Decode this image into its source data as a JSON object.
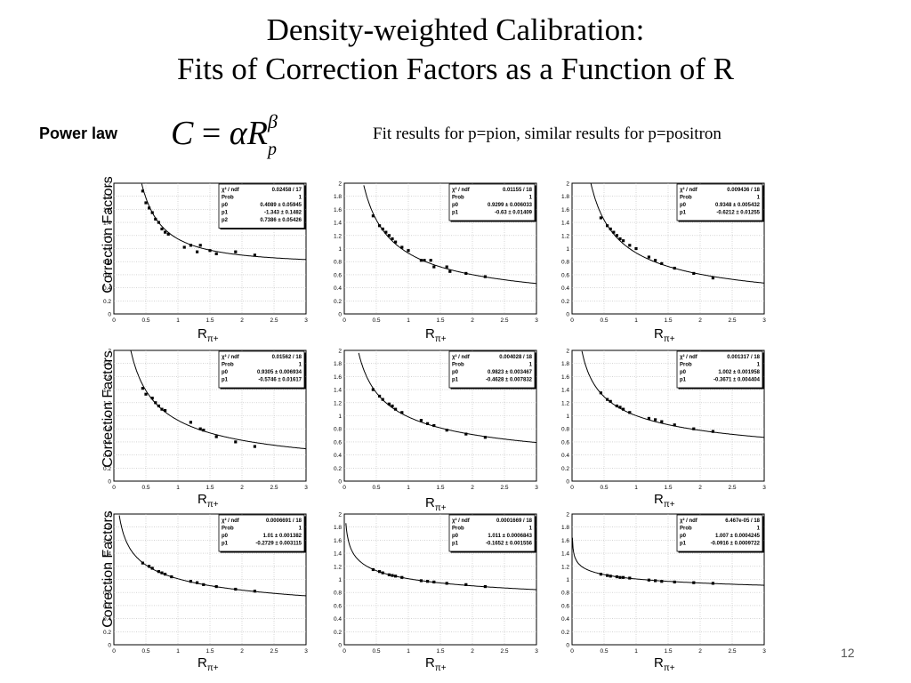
{
  "slide": {
    "title_line1": "Density-weighted Calibration:",
    "title_line2": "Fits of Correction Factors as a Function of R",
    "power_law_label": "Power law",
    "formula": {
      "lhs": "C",
      "eq": "=",
      "alpha": "α",
      "r": "R",
      "sub": "p",
      "sup": "β"
    },
    "fit_note": "Fit results for p=pion, similar results for p=positron",
    "y_axis_label": "Correction Factors",
    "x_axis_label_base": "R",
    "x_axis_label_sub": "π+",
    "page_number": "12"
  },
  "chart_data": [
    {
      "type": "scatter",
      "xlim": [
        0,
        3
      ],
      "ylim": [
        0,
        2
      ],
      "x_ticks": [
        "0",
        "0.5",
        "1",
        "1.5",
        "2",
        "2.5",
        "3"
      ],
      "y_ticks": [
        "0",
        "0.2",
        "0.4",
        "0.6",
        "0.8",
        "1",
        "1.2",
        "1.4",
        "1.6",
        "1.8",
        "2"
      ],
      "fit": {
        "alpha": 0.4089,
        "beta": -1.343,
        "offset": 0.7386
      },
      "stats": [
        [
          "χ² / ndf",
          "0.02458 / 17"
        ],
        [
          "Prob",
          "1"
        ],
        [
          "p0",
          "0.4089 ± 0.05945"
        ],
        [
          "p1",
          "-1.343 ± 0.1482"
        ],
        [
          "p2",
          "0.7386 ± 0.05426"
        ]
      ],
      "x": [
        0.45,
        0.5,
        0.55,
        0.6,
        0.65,
        0.7,
        0.75,
        0.8,
        0.85,
        1.1,
        1.2,
        1.3,
        1.35,
        1.5,
        1.6,
        1.9,
        2.2
      ],
      "y": [
        1.88,
        1.7,
        1.62,
        1.55,
        1.45,
        1.4,
        1.3,
        1.25,
        1.22,
        1.02,
        1.05,
        0.95,
        1.05,
        0.97,
        0.92,
        0.95,
        0.9
      ]
    },
    {
      "type": "scatter",
      "xlim": [
        0,
        3
      ],
      "ylim": [
        0,
        2
      ],
      "x_ticks": [
        "0",
        "0.5",
        "1",
        "1.5",
        "2",
        "2.5",
        "3"
      ],
      "y_ticks": [
        "0",
        "0.2",
        "0.4",
        "0.6",
        "0.8",
        "1",
        "1.2",
        "1.4",
        "1.6",
        "1.8",
        "2"
      ],
      "fit": {
        "alpha": 0.9299,
        "beta": -0.63,
        "offset": 0
      },
      "stats": [
        [
          "χ² / ndf",
          "0.01155 / 18"
        ],
        [
          "Prob",
          "1"
        ],
        [
          "p0",
          "0.9299 ± 0.006033"
        ],
        [
          "p1",
          "-0.63 ± 0.01409"
        ]
      ],
      "x": [
        0.45,
        0.55,
        0.6,
        0.65,
        0.7,
        0.75,
        0.8,
        0.9,
        1.0,
        1.2,
        1.25,
        1.35,
        1.4,
        1.6,
        1.65,
        1.9,
        2.2
      ],
      "y": [
        1.5,
        1.35,
        1.3,
        1.25,
        1.2,
        1.15,
        1.1,
        1.02,
        0.97,
        0.82,
        0.82,
        0.82,
        0.72,
        0.72,
        0.65,
        0.62,
        0.57
      ]
    },
    {
      "type": "scatter",
      "xlim": [
        0,
        3
      ],
      "ylim": [
        0,
        2
      ],
      "x_ticks": [
        "0",
        "0.5",
        "1",
        "1.5",
        "2",
        "2.5",
        "3"
      ],
      "y_ticks": [
        "0",
        "0.2",
        "0.4",
        "0.6",
        "0.8",
        "1",
        "1.2",
        "1.4",
        "1.6",
        "1.8",
        "2"
      ],
      "fit": {
        "alpha": 0.9348,
        "beta": -0.6212,
        "offset": 0
      },
      "stats": [
        [
          "χ² / ndf",
          "0.009436 / 18"
        ],
        [
          "Prob",
          "1"
        ],
        [
          "p0",
          "0.9348 ± 0.005432"
        ],
        [
          "p1",
          "-0.6212 ± 0.01255"
        ]
      ],
      "x": [
        0.45,
        0.55,
        0.6,
        0.65,
        0.7,
        0.75,
        0.8,
        0.9,
        1.0,
        1.2,
        1.3,
        1.4,
        1.6,
        1.9,
        2.2
      ],
      "y": [
        1.47,
        1.35,
        1.3,
        1.25,
        1.2,
        1.15,
        1.12,
        1.05,
        1.0,
        0.87,
        0.82,
        0.77,
        0.7,
        0.62,
        0.55
      ]
    },
    {
      "type": "scatter",
      "xlim": [
        0,
        3
      ],
      "ylim": [
        0,
        2
      ],
      "x_ticks": [
        "0",
        "0.5",
        "1",
        "1.5",
        "2",
        "2.5",
        "3"
      ],
      "y_ticks": [
        "0",
        "0.2",
        "0.4",
        "0.6",
        "0.8",
        "1",
        "1.2",
        "1.4",
        "1.6",
        "1.8",
        "2"
      ],
      "fit": {
        "alpha": 0.9305,
        "beta": -0.5746,
        "offset": 0
      },
      "stats": [
        [
          "χ² / ndf",
          "0.01562 / 18"
        ],
        [
          "Prob",
          "1"
        ],
        [
          "p0",
          "0.9305 ± 0.006934"
        ],
        [
          "p1",
          "-0.5746 ± 0.01617"
        ]
      ],
      "x": [
        0.45,
        0.5,
        0.6,
        0.65,
        0.7,
        0.75,
        0.8,
        1.2,
        1.35,
        1.4,
        1.6,
        1.9,
        2.2
      ],
      "y": [
        1.42,
        1.33,
        1.27,
        1.2,
        1.15,
        1.1,
        1.08,
        0.9,
        0.8,
        0.78,
        0.68,
        0.6,
        0.53
      ]
    },
    {
      "type": "scatter",
      "xlim": [
        0,
        3
      ],
      "ylim": [
        0,
        2
      ],
      "x_ticks": [
        "0",
        "0.5",
        "1",
        "1.5",
        "2",
        "2.5",
        "3"
      ],
      "y_ticks": [
        "0",
        "0.2",
        "0.4",
        "0.6",
        "0.8",
        "1",
        "1.2",
        "1.4",
        "1.6",
        "1.8",
        "2"
      ],
      "fit": {
        "alpha": 0.9823,
        "beta": -0.4628,
        "offset": 0
      },
      "stats": [
        [
          "χ² / ndf",
          "0.004028 / 18"
        ],
        [
          "Prob",
          "1"
        ],
        [
          "p0",
          "0.9823 ± 0.003467"
        ],
        [
          "p1",
          "-0.4628 ± 0.007832"
        ]
      ],
      "x": [
        0.45,
        0.55,
        0.6,
        0.7,
        0.75,
        0.8,
        0.9,
        1.2,
        1.3,
        1.4,
        1.6,
        1.9,
        2.2
      ],
      "y": [
        1.4,
        1.3,
        1.25,
        1.18,
        1.15,
        1.1,
        1.05,
        0.93,
        0.88,
        0.85,
        0.78,
        0.72,
        0.67
      ]
    },
    {
      "type": "scatter",
      "xlim": [
        0,
        3
      ],
      "ylim": [
        0,
        2
      ],
      "x_ticks": [
        "0",
        "0.5",
        "1",
        "1.5",
        "2",
        "2.5",
        "3"
      ],
      "y_ticks": [
        "0",
        "0.2",
        "0.4",
        "0.6",
        "0.8",
        "1",
        "1.2",
        "1.4",
        "1.6",
        "1.8",
        "2"
      ],
      "fit": {
        "alpha": 1.002,
        "beta": -0.3671,
        "offset": 0
      },
      "stats": [
        [
          "χ² / ndf",
          "0.001317 / 18"
        ],
        [
          "Prob",
          "1"
        ],
        [
          "p0",
          "1.002 ± 0.001958"
        ],
        [
          "p1",
          "-0.3671 ± 0.004404"
        ]
      ],
      "x": [
        0.45,
        0.55,
        0.6,
        0.7,
        0.75,
        0.8,
        0.9,
        1.2,
        1.3,
        1.4,
        1.6,
        1.9,
        2.2
      ],
      "y": [
        1.35,
        1.25,
        1.22,
        1.15,
        1.13,
        1.1,
        1.05,
        0.96,
        0.94,
        0.91,
        0.86,
        0.8,
        0.76
      ]
    },
    {
      "type": "scatter",
      "xlim": [
        0,
        3
      ],
      "ylim": [
        0,
        2
      ],
      "x_ticks": [
        "0",
        "0.5",
        "1",
        "1.5",
        "2",
        "2.5",
        "3"
      ],
      "y_ticks": [
        "0",
        "0.2",
        "0.4",
        "0.6",
        "0.8",
        "1",
        "1.2",
        "1.4",
        "1.6",
        "1.8",
        "2"
      ],
      "fit": {
        "alpha": 1.01,
        "beta": -0.2729,
        "offset": 0
      },
      "stats": [
        [
          "χ² / ndf",
          "0.0006691 / 18"
        ],
        [
          "Prob",
          "1"
        ],
        [
          "p0",
          "1.01 ± 0.001382"
        ],
        [
          "p1",
          "-0.2729 ± 0.003115"
        ]
      ],
      "x": [
        0.45,
        0.55,
        0.6,
        0.7,
        0.75,
        0.8,
        0.9,
        1.2,
        1.3,
        1.4,
        1.6,
        1.9,
        2.2
      ],
      "y": [
        1.25,
        1.2,
        1.17,
        1.12,
        1.1,
        1.08,
        1.04,
        0.97,
        0.95,
        0.92,
        0.89,
        0.85,
        0.82
      ]
    },
    {
      "type": "scatter",
      "xlim": [
        0,
        3
      ],
      "ylim": [
        0,
        2
      ],
      "x_ticks": [
        "0",
        "0.5",
        "1",
        "1.5",
        "2",
        "2.5",
        "3"
      ],
      "y_ticks": [
        "0",
        "0.2",
        "0.4",
        "0.6",
        "0.8",
        "1",
        "1.2",
        "1.4",
        "1.6",
        "1.8",
        "2"
      ],
      "fit": {
        "alpha": 1.011,
        "beta": -0.1652,
        "offset": 0
      },
      "stats": [
        [
          "χ² / ndf",
          "0.0001669 / 18"
        ],
        [
          "Prob",
          "1"
        ],
        [
          "p0",
          "1.011 ± 0.0006843"
        ],
        [
          "p1",
          "-0.1652 ± 0.001556"
        ]
      ],
      "x": [
        0.45,
        0.55,
        0.6,
        0.7,
        0.75,
        0.8,
        0.9,
        1.2,
        1.3,
        1.4,
        1.6,
        1.9,
        2.2
      ],
      "y": [
        1.15,
        1.12,
        1.1,
        1.07,
        1.06,
        1.05,
        1.03,
        0.98,
        0.97,
        0.96,
        0.94,
        0.92,
        0.89
      ]
    },
    {
      "type": "scatter",
      "xlim": [
        0,
        3
      ],
      "ylim": [
        0,
        2
      ],
      "x_ticks": [
        "0",
        "0.5",
        "1",
        "1.5",
        "2",
        "2.5",
        "3"
      ],
      "y_ticks": [
        "0",
        "0.2",
        "0.4",
        "0.6",
        "0.8",
        "1",
        "1.2",
        "1.4",
        "1.6",
        "1.8",
        "2"
      ],
      "fit": {
        "alpha": 1.007,
        "beta": -0.0916,
        "offset": 0
      },
      "stats": [
        [
          "χ² / ndf",
          "6.467e-05 / 18"
        ],
        [
          "Prob",
          "1"
        ],
        [
          "p0",
          "1.007 ± 0.0004245"
        ],
        [
          "p1",
          "-0.0916 ± 0.0009722"
        ]
      ],
      "x": [
        0.45,
        0.55,
        0.6,
        0.7,
        0.75,
        0.8,
        0.9,
        1.2,
        1.3,
        1.4,
        1.6,
        1.9,
        2.2
      ],
      "y": [
        1.08,
        1.06,
        1.05,
        1.04,
        1.03,
        1.03,
        1.02,
        0.99,
        0.98,
        0.97,
        0.96,
        0.95,
        0.94
      ]
    }
  ]
}
